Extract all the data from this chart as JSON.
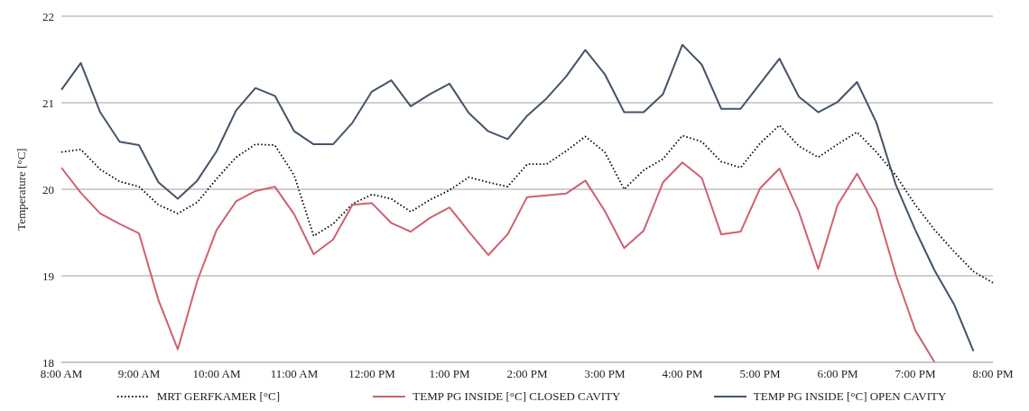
{
  "chart_data": {
    "type": "line",
    "ylabel": "Temperature [°C]",
    "categories": [
      "8:00 AM",
      null,
      null,
      null,
      "9:00 AM",
      null,
      null,
      null,
      "10:00 AM",
      null,
      null,
      null,
      "11:00 AM",
      null,
      null,
      null,
      "12:00 PM",
      null,
      null,
      null,
      "1:00 PM",
      null,
      null,
      null,
      "2:00 PM",
      null,
      null,
      null,
      "3:00 PM",
      null,
      null,
      null,
      "4:00 PM",
      null,
      null,
      null,
      "5:00 PM",
      null,
      null,
      null,
      "6:00 PM",
      null,
      null,
      null,
      "7:00 PM",
      null,
      null,
      null,
      "8:00 PM"
    ],
    "series": [
      {
        "name": "MRT GERFKAMER [°C]",
        "color": "#000000",
        "line_style": "dotted",
        "values": [
          20.43,
          20.46,
          20.23,
          20.09,
          20.03,
          19.82,
          19.72,
          19.85,
          20.12,
          20.37,
          20.52,
          20.51,
          20.16,
          19.46,
          19.6,
          19.83,
          19.94,
          19.89,
          19.74,
          19.88,
          19.99,
          20.14,
          20.08,
          20.03,
          20.29,
          20.29,
          20.44,
          20.61,
          20.43,
          20.0,
          20.22,
          20.35,
          20.62,
          20.55,
          20.32,
          20.25,
          20.53,
          20.74,
          20.5,
          20.37,
          20.52,
          20.66,
          20.43,
          20.16,
          19.82,
          19.53,
          19.28,
          19.05,
          18.92
        ]
      },
      {
        "name": "TEMP PG INSIDE [°C] CLOSED CAVITY",
        "color": "#d0606e",
        "line_style": "solid",
        "values": [
          20.25,
          19.96,
          19.72,
          19.6,
          19.49,
          18.72,
          18.15,
          18.94,
          19.53,
          19.86,
          19.98,
          20.03,
          19.71,
          19.25,
          19.42,
          19.82,
          19.84,
          19.61,
          19.51,
          19.67,
          19.79,
          19.51,
          19.24,
          19.48,
          19.91,
          19.93,
          19.95,
          20.1,
          19.75,
          19.32,
          19.52,
          20.08,
          20.31,
          20.13,
          19.48,
          19.51,
          20.01,
          20.24,
          19.74,
          19.08,
          19.82,
          20.18,
          19.78,
          19.01,
          18.37,
          18.0,
          null,
          null,
          null
        ]
      },
      {
        "name": "TEMP PG INSIDE [°C] OPEN CAVITY",
        "color": "#44546a",
        "line_style": "solid",
        "values": [
          21.15,
          21.46,
          20.89,
          20.55,
          20.51,
          20.08,
          19.89,
          20.1,
          20.44,
          20.91,
          21.17,
          21.08,
          20.67,
          20.52,
          20.52,
          20.77,
          21.13,
          21.26,
          20.96,
          21.1,
          21.22,
          20.88,
          20.67,
          20.58,
          20.85,
          21.05,
          21.3,
          21.61,
          21.33,
          20.89,
          20.89,
          21.1,
          21.67,
          21.44,
          20.93,
          20.93,
          21.22,
          21.51,
          21.07,
          20.89,
          21.01,
          21.24,
          20.77,
          20.05,
          19.53,
          19.06,
          18.67,
          18.13,
          null
        ]
      }
    ],
    "ylim": [
      18,
      22
    ],
    "yticks": [
      18,
      19,
      20,
      21,
      22
    ],
    "grid": "y",
    "legend": "bottom",
    "marker": "none"
  }
}
